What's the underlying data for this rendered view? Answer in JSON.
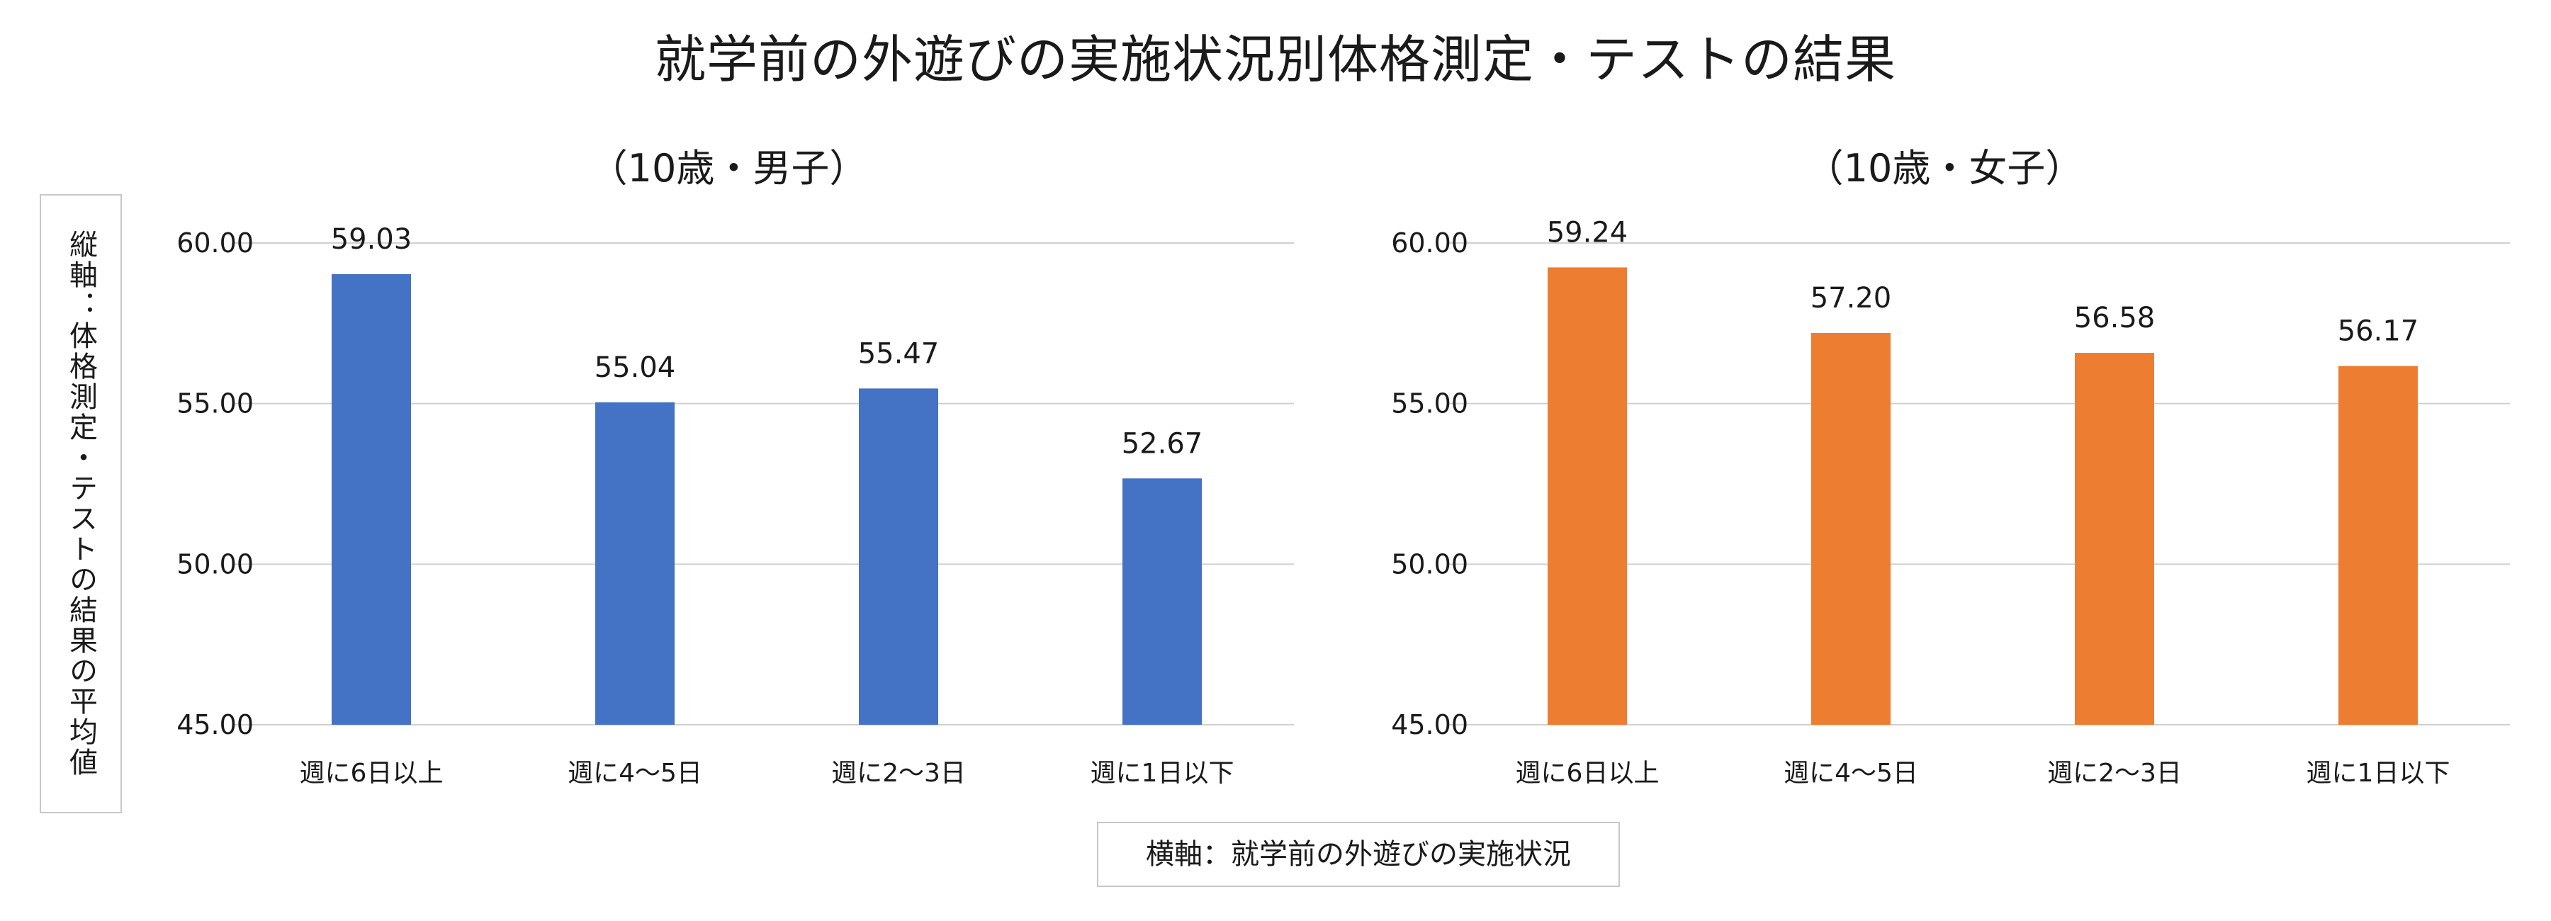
{
  "title": "就学前の外遊びの実施状況別体格測定・テストの結果",
  "y_axis_box_label": "縦軸：体格測定・テストの結果の平均値",
  "x_axis_box_label": "横軸：就学前の外遊びの実施状況",
  "chart_data": [
    {
      "type": "bar",
      "subtitle": "（10歳・男子）",
      "categories": [
        "週に6日以上",
        "週に4～5日",
        "週に2～3日",
        "週に1日以下"
      ],
      "values": [
        59.03,
        55.04,
        55.47,
        52.67
      ],
      "value_labels": [
        "59.03",
        "55.04",
        "55.47",
        "52.67"
      ],
      "yticks": [
        "45.00",
        "50.00",
        "55.00",
        "60.00"
      ],
      "ylim": [
        45,
        60
      ],
      "ytick_values": [
        45,
        50,
        55,
        60
      ],
      "color": "#4472c4",
      "xlabel": "",
      "ylabel": ""
    },
    {
      "type": "bar",
      "subtitle": "（10歳・女子）",
      "categories": [
        "週に6日以上",
        "週に4～5日",
        "週に2～3日",
        "週に1日以下"
      ],
      "values": [
        59.24,
        57.2,
        56.58,
        56.17
      ],
      "value_labels": [
        "59.24",
        "57.20",
        "56.58",
        "56.17"
      ],
      "yticks": [
        "45.00",
        "50.00",
        "55.00",
        "60.00"
      ],
      "ylim": [
        45,
        60
      ],
      "ytick_values": [
        45,
        50,
        55,
        60
      ],
      "color": "#ed7d31",
      "xlabel": "",
      "ylabel": ""
    }
  ]
}
